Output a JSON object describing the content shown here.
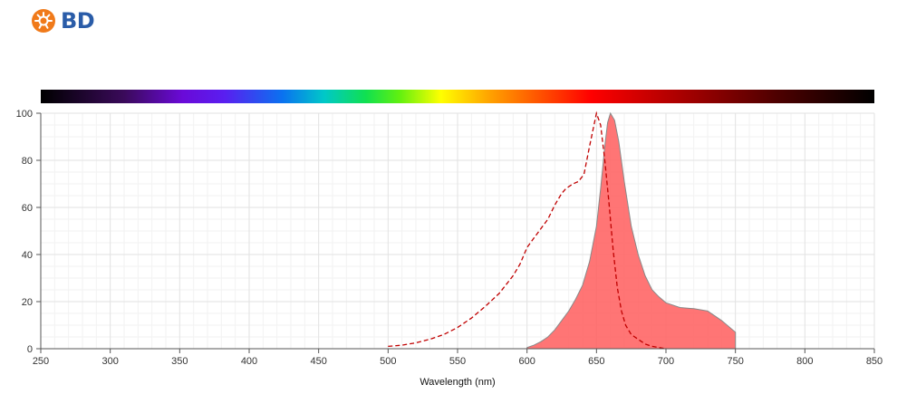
{
  "logo": {
    "text": "BD"
  },
  "chart_data": {
    "type": "area",
    "title": "",
    "xlabel": "Wavelength (nm)",
    "ylabel": "",
    "xlim": [
      250,
      850
    ],
    "ylim": [
      0,
      100
    ],
    "x_ticks": [
      250,
      300,
      350,
      400,
      450,
      500,
      550,
      600,
      650,
      700,
      750,
      800,
      850
    ],
    "y_ticks": [
      0,
      20,
      40,
      60,
      80,
      100
    ],
    "grid": true,
    "legend": "none",
    "series": [
      {
        "style": "dashed-line",
        "color": "#c00000",
        "points": [
          [
            500,
            1
          ],
          [
            510,
            1.5
          ],
          [
            520,
            2.5
          ],
          [
            530,
            4
          ],
          [
            540,
            6
          ],
          [
            550,
            9
          ],
          [
            560,
            13
          ],
          [
            570,
            18
          ],
          [
            580,
            23.5
          ],
          [
            590,
            31
          ],
          [
            595,
            36
          ],
          [
            600,
            43
          ],
          [
            605,
            47
          ],
          [
            610,
            51
          ],
          [
            615,
            55
          ],
          [
            620,
            61
          ],
          [
            625,
            66
          ],
          [
            628,
            68
          ],
          [
            633,
            70
          ],
          [
            637,
            71
          ],
          [
            641,
            74
          ],
          [
            645,
            86
          ],
          [
            650,
            100
          ],
          [
            653,
            95
          ],
          [
            656,
            80
          ],
          [
            659,
            62
          ],
          [
            662,
            42
          ],
          [
            665,
            26
          ],
          [
            668,
            16
          ],
          [
            671,
            10
          ],
          [
            675,
            6
          ],
          [
            680,
            4
          ],
          [
            685,
            2
          ],
          [
            690,
            1
          ],
          [
            695,
            0.5
          ],
          [
            700,
            0
          ]
        ]
      },
      {
        "style": "filled-area",
        "color": "#ff6666",
        "points": [
          [
            600,
            0.5
          ],
          [
            605,
            1.5
          ],
          [
            610,
            3
          ],
          [
            615,
            5
          ],
          [
            620,
            8
          ],
          [
            625,
            12
          ],
          [
            630,
            16
          ],
          [
            635,
            21
          ],
          [
            640,
            27
          ],
          [
            645,
            37
          ],
          [
            650,
            52
          ],
          [
            653,
            68
          ],
          [
            656,
            86
          ],
          [
            658,
            96
          ],
          [
            660,
            100
          ],
          [
            663,
            97
          ],
          [
            666,
            88
          ],
          [
            670,
            71
          ],
          [
            675,
            52
          ],
          [
            680,
            40
          ],
          [
            685,
            31
          ],
          [
            690,
            25
          ],
          [
            695,
            22
          ],
          [
            700,
            19.5
          ],
          [
            710,
            17.5
          ],
          [
            720,
            17
          ],
          [
            730,
            16
          ],
          [
            740,
            12
          ],
          [
            750,
            7
          ]
        ]
      }
    ]
  }
}
